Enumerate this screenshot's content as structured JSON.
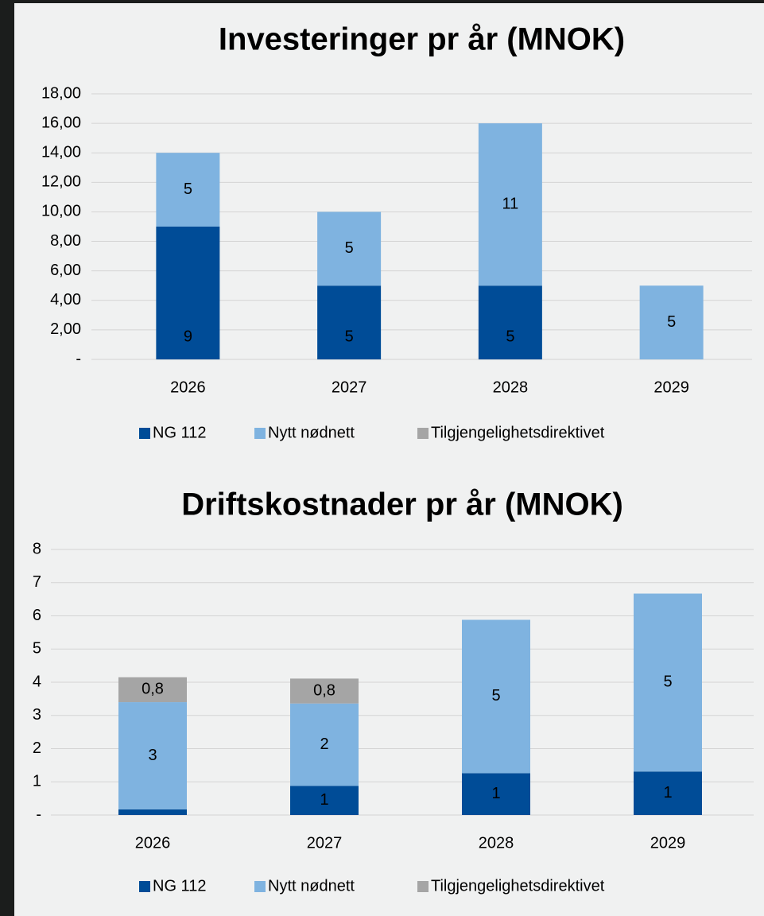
{
  "chart_data": [
    {
      "type": "bar",
      "stacked": true,
      "title": "Investeringer pr år (MNOK)",
      "categories": [
        "2026",
        "2027",
        "2028",
        "2029"
      ],
      "series": [
        {
          "name": "NG 112",
          "color": "#004c97",
          "values": [
            9,
            5,
            5,
            0
          ]
        },
        {
          "name": "Nytt nødnett",
          "color": "#7fb3e0",
          "values": [
            5,
            5,
            11,
            5
          ]
        },
        {
          "name": "Tilgjengelighetsdirektivet",
          "color": "#a5a5a5",
          "values": [
            0,
            0,
            0,
            0
          ]
        }
      ],
      "ylim": [
        0,
        18
      ],
      "yticks": [
        {
          "value": 0,
          "label": "-"
        },
        {
          "value": 2,
          "label": "2,00"
        },
        {
          "value": 4,
          "label": "4,00"
        },
        {
          "value": 6,
          "label": "6,00"
        },
        {
          "value": 8,
          "label": "8,00"
        },
        {
          "value": 10,
          "label": "10,00"
        },
        {
          "value": 12,
          "label": "12,00"
        },
        {
          "value": 14,
          "label": "14,00"
        },
        {
          "value": 16,
          "label": "16,00"
        },
        {
          "value": 18,
          "label": "18,00"
        }
      ],
      "grid": true,
      "legend": "bottom"
    },
    {
      "type": "bar",
      "stacked": true,
      "title": "Driftskostnader pr år (MNOK)",
      "categories": [
        "2026",
        "2027",
        "2028",
        "2029"
      ],
      "series": [
        {
          "name": "NG 112",
          "color": "#004c97",
          "values": [
            0.17,
            0.88,
            1.26,
            1.31
          ],
          "value_labels": [
            null,
            "1",
            "1",
            "1"
          ]
        },
        {
          "name": "Nytt nødnett",
          "color": "#7fb3e0",
          "values": [
            3.23,
            2.48,
            4.62,
            5.36
          ],
          "value_labels": [
            "3",
            "2",
            "5",
            "5"
          ]
        },
        {
          "name": "Tilgjengelighetsdirektivet",
          "color": "#a5a5a5",
          "values": [
            0.75,
            0.75,
            0,
            0
          ],
          "value_labels": [
            "0,8",
            "0,8",
            null,
            null
          ]
        }
      ],
      "ylim": [
        0,
        8
      ],
      "yticks": [
        {
          "value": 0,
          "label": "-"
        },
        1,
        2,
        3,
        4,
        5,
        6,
        7,
        8
      ],
      "grid": true,
      "legend": "bottom"
    }
  ]
}
